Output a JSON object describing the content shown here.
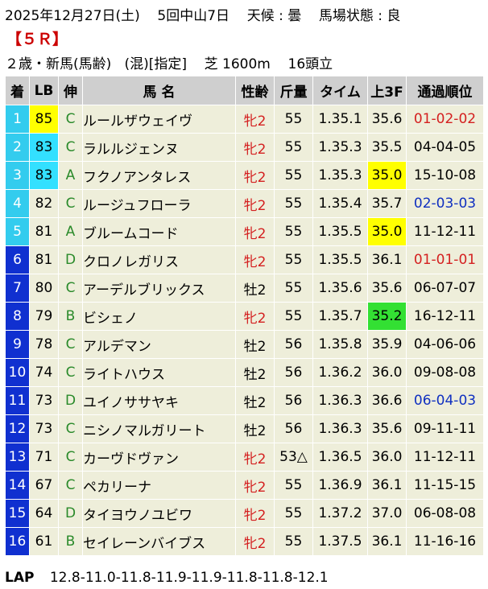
{
  "header": {
    "date": "2025年12月27日(土)",
    "meeting": "5回中山7日",
    "weather": "天候 : 曇",
    "track": "馬場状態 : 良",
    "race_no": "【５Ｒ】",
    "class": "２歳・新馬(馬齢)",
    "conditions": "(混)[指定]",
    "course": "芝 1600m",
    "field": "16頭立"
  },
  "columns": [
    "着",
    "LB",
    "伸",
    "馬 名",
    "性齢",
    "斤量",
    "タイム",
    "上3F",
    "通過順位"
  ],
  "colors": {
    "rank_cyan": "#33ccee",
    "rank_blue": "#1030d0",
    "highlight_yellow": "#ffff00",
    "highlight_green": "#33e033",
    "row_bg": "#eeeeda",
    "header_bg": "#cfcfcf"
  },
  "rows": [
    {
      "rank": "1",
      "lb": "85",
      "grade": "C",
      "name": "ルールザウェイヴ",
      "sexage": "牝2",
      "weight": "55",
      "time": "1.35.1",
      "last3f": "35.6",
      "pass": "01-02-02",
      "rank_color": "cyan",
      "lb_hl": "yellow",
      "l3_hl": "",
      "pass_color": "red",
      "sex": "f"
    },
    {
      "rank": "2",
      "lb": "83",
      "grade": "C",
      "name": "ラルルジェンヌ",
      "sexage": "牝2",
      "weight": "55",
      "time": "1.35.3",
      "last3f": "35.5",
      "pass": "04-04-05",
      "rank_color": "cyan",
      "lb_hl": "cyan",
      "l3_hl": "",
      "pass_color": "",
      "sex": "f"
    },
    {
      "rank": "3",
      "lb": "83",
      "grade": "A",
      "name": "フクノアンタレス",
      "sexage": "牝2",
      "weight": "55",
      "time": "1.35.3",
      "last3f": "35.0",
      "pass": "15-10-08",
      "rank_color": "cyan",
      "lb_hl": "cyan",
      "l3_hl": "yellow",
      "pass_color": "",
      "sex": "f"
    },
    {
      "rank": "4",
      "lb": "82",
      "grade": "C",
      "name": "ルージュフローラ",
      "sexage": "牝2",
      "weight": "55",
      "time": "1.35.4",
      "last3f": "35.7",
      "pass": "02-03-03",
      "rank_color": "cyan",
      "lb_hl": "",
      "l3_hl": "",
      "pass_color": "blue",
      "sex": "f"
    },
    {
      "rank": "5",
      "lb": "81",
      "grade": "A",
      "name": "ブルームコード",
      "sexage": "牝2",
      "weight": "55",
      "time": "1.35.5",
      "last3f": "35.0",
      "pass": "11-12-11",
      "rank_color": "cyan",
      "lb_hl": "",
      "l3_hl": "yellow",
      "pass_color": "",
      "sex": "f"
    },
    {
      "rank": "6",
      "lb": "81",
      "grade": "D",
      "name": "クロノレガリス",
      "sexage": "牝2",
      "weight": "55",
      "time": "1.35.5",
      "last3f": "36.1",
      "pass": "01-01-01",
      "rank_color": "blue",
      "lb_hl": "",
      "l3_hl": "",
      "pass_color": "red",
      "sex": "f"
    },
    {
      "rank": "7",
      "lb": "80",
      "grade": "C",
      "name": "アーデルブリックス",
      "sexage": "牡2",
      "weight": "55",
      "time": "1.35.6",
      "last3f": "35.6",
      "pass": "06-07-07",
      "rank_color": "blue",
      "lb_hl": "",
      "l3_hl": "",
      "pass_color": "",
      "sex": "m"
    },
    {
      "rank": "8",
      "lb": "79",
      "grade": "B",
      "name": "ビシェノ",
      "sexage": "牝2",
      "weight": "55",
      "time": "1.35.7",
      "last3f": "35.2",
      "pass": "16-12-11",
      "rank_color": "blue",
      "lb_hl": "",
      "l3_hl": "green",
      "pass_color": "",
      "sex": "f"
    },
    {
      "rank": "9",
      "lb": "78",
      "grade": "C",
      "name": "アルデマン",
      "sexage": "牡2",
      "weight": "56",
      "time": "1.35.8",
      "last3f": "35.9",
      "pass": "04-06-06",
      "rank_color": "blue",
      "lb_hl": "",
      "l3_hl": "",
      "pass_color": "",
      "sex": "m"
    },
    {
      "rank": "10",
      "lb": "74",
      "grade": "C",
      "name": "ライトハウス",
      "sexage": "牡2",
      "weight": "56",
      "time": "1.36.2",
      "last3f": "36.0",
      "pass": "09-08-08",
      "rank_color": "blue",
      "lb_hl": "",
      "l3_hl": "",
      "pass_color": "",
      "sex": "m"
    },
    {
      "rank": "11",
      "lb": "73",
      "grade": "D",
      "name": "ユイノササヤキ",
      "sexage": "牡2",
      "weight": "56",
      "time": "1.36.3",
      "last3f": "36.6",
      "pass": "06-04-03",
      "rank_color": "blue",
      "lb_hl": "",
      "l3_hl": "",
      "pass_color": "blue",
      "sex": "m"
    },
    {
      "rank": "12",
      "lb": "73",
      "grade": "C",
      "name": "ニシノマルガリート",
      "sexage": "牡2",
      "weight": "56",
      "time": "1.36.3",
      "last3f": "35.6",
      "pass": "09-11-11",
      "rank_color": "blue",
      "lb_hl": "",
      "l3_hl": "",
      "pass_color": "",
      "sex": "m"
    },
    {
      "rank": "13",
      "lb": "71",
      "grade": "C",
      "name": "カーヴドヴァン",
      "sexage": "牝2",
      "weight": "53△",
      "time": "1.36.5",
      "last3f": "36.0",
      "pass": "11-12-11",
      "rank_color": "blue",
      "lb_hl": "",
      "l3_hl": "",
      "pass_color": "",
      "sex": "f"
    },
    {
      "rank": "14",
      "lb": "67",
      "grade": "C",
      "name": "ペカリーナ",
      "sexage": "牝2",
      "weight": "55",
      "time": "1.36.9",
      "last3f": "36.1",
      "pass": "11-15-15",
      "rank_color": "blue",
      "lb_hl": "",
      "l3_hl": "",
      "pass_color": "",
      "sex": "f"
    },
    {
      "rank": "15",
      "lb": "64",
      "grade": "D",
      "name": "タイヨウノユビワ",
      "sexage": "牝2",
      "weight": "55",
      "time": "1.37.2",
      "last3f": "37.0",
      "pass": "06-08-08",
      "rank_color": "blue",
      "lb_hl": "",
      "l3_hl": "",
      "pass_color": "",
      "sex": "f"
    },
    {
      "rank": "16",
      "lb": "61",
      "grade": "B",
      "name": "セイレーンバイブス",
      "sexage": "牝2",
      "weight": "55",
      "time": "1.37.5",
      "last3f": "36.1",
      "pass": "11-16-16",
      "rank_color": "blue",
      "lb_hl": "",
      "l3_hl": "",
      "pass_color": "",
      "sex": "f"
    }
  ],
  "lap": {
    "label": "LAP",
    "values": "12.8-11.0-11.8-11.9-11.9-11.8-11.8-12.1"
  }
}
